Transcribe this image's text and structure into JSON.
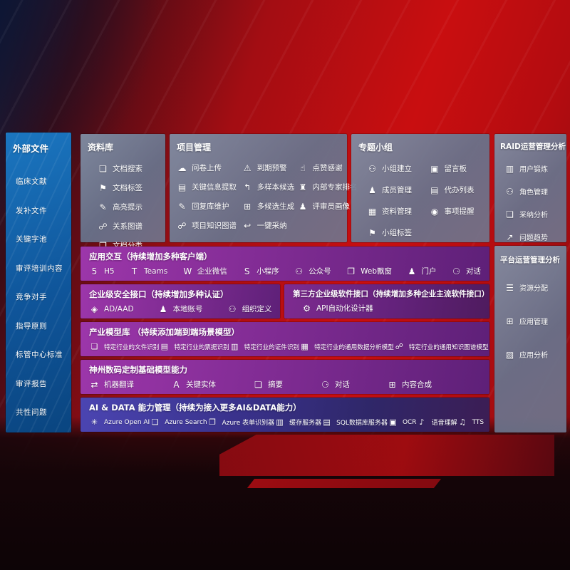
{
  "colors": {
    "background_red": "#c90e10",
    "background_navy": "#16203e",
    "left_panel_blue": "#0f559a",
    "slate_panel": "#6f7d96",
    "purple_row": "#852d97",
    "third_party_row": "#63227b",
    "ai_row_indigo": "#39318a",
    "text": "#ffffff"
  },
  "icons": {
    "doc-search": "❏",
    "doc-tag": "⚑",
    "highlight": "✎",
    "relation-graph": "☍",
    "doc-classify": "❐",
    "cloud-upload": "☁",
    "alarm": "⚠",
    "thumb-up": "☝",
    "info-extract": "▤",
    "multi-sample": "↰",
    "expert-rank": "♜",
    "reply-maintain": "✎",
    "multi-generate": "⊞",
    "reviewer-profile": "♟",
    "project-graph": "☍",
    "one-click-adopt": "↩",
    "group-create": "⚇",
    "message-board": "▣",
    "member-manage": "♟",
    "todo-list": "▤",
    "material-manage": "▦",
    "event-remind": "◉",
    "group-tag": "⚑",
    "user-card": "▥",
    "role-manage": "⚇",
    "adopt-analysis": "❏",
    "trend-chart": "↗",
    "resource-alloc": "☰",
    "app-manage": "⊞",
    "app-analysis": "▨",
    "h5": "5",
    "teams": "T",
    "wechat-work": "W",
    "miniprogram": "S",
    "official-account": "⚇",
    "web-popup": "❐",
    "portal": "♟",
    "dialog": "⚆",
    "ad-aad": "◈",
    "local-account": "♟",
    "org-define": "⚇",
    "api-designer": "⚙",
    "file-recog": "❏",
    "invoice-recog": "▤",
    "id-recog": "▥",
    "data-model": "▦",
    "kg-model": "☍",
    "translate": "⇄",
    "key-entity": "A",
    "summary": "❏",
    "dialogue": "⚆",
    "content-synth": "⊞",
    "openai": "✳",
    "azure-search": "❏",
    "form-recognizer": "❐",
    "cache-server": "▥",
    "sql-server": "▤",
    "ocr": "▣",
    "speech": "♪",
    "tts": "♫"
  },
  "left_column": {
    "title": "外部文件",
    "items": [
      "临床文献",
      "发补文件",
      "关键字池",
      "审评培训内容",
      "竞争对手",
      "指导原则",
      "标管中心标准",
      "审评报告",
      "共性问题"
    ]
  },
  "panels": {
    "repository": {
      "title": "资料库",
      "items": [
        {
          "icon": "doc-search",
          "label": "文档搜索"
        },
        {
          "icon": "doc-tag",
          "label": "文档标签"
        },
        {
          "icon": "highlight",
          "label": "高亮提示"
        },
        {
          "icon": "relation-graph",
          "label": "关系图谱"
        },
        {
          "icon": "doc-classify",
          "label": "文档分类"
        }
      ]
    },
    "project": {
      "title": "项目管理",
      "items": [
        {
          "icon": "cloud-upload",
          "label": "问卷上传"
        },
        {
          "icon": "alarm",
          "label": "到期预警"
        },
        {
          "icon": "thumb-up",
          "label": "点赞感谢"
        },
        {
          "icon": "info-extract",
          "label": "关键信息提取"
        },
        {
          "icon": "multi-sample",
          "label": "多样本候选"
        },
        {
          "icon": "expert-rank",
          "label": "内部专家排名"
        },
        {
          "icon": "reply-maintain",
          "label": "回复库维护"
        },
        {
          "icon": "multi-generate",
          "label": "多候选生成"
        },
        {
          "icon": "reviewer-profile",
          "label": "评审员画像"
        },
        {
          "icon": "project-graph",
          "label": "项目知识图谱"
        },
        {
          "icon": "one-click-adopt",
          "label": "一键采纳"
        }
      ]
    },
    "groups": {
      "title": "专题小组",
      "items": [
        {
          "icon": "group-create",
          "label": "小组建立"
        },
        {
          "icon": "message-board",
          "label": "留言板"
        },
        {
          "icon": "member-manage",
          "label": "成员管理"
        },
        {
          "icon": "todo-list",
          "label": "代办列表"
        },
        {
          "icon": "material-manage",
          "label": "资料管理"
        },
        {
          "icon": "event-remind",
          "label": "事项提醒"
        },
        {
          "icon": "group-tag",
          "label": "小组标签"
        }
      ]
    },
    "raid": {
      "title": "RAID运营管理分析",
      "items": [
        {
          "icon": "user-card",
          "label": "用户锻炼"
        },
        {
          "icon": "role-manage",
          "label": "角色管理"
        },
        {
          "icon": "adopt-analysis",
          "label": "采纳分析"
        },
        {
          "icon": "trend-chart",
          "label": "问题趋势"
        }
      ]
    },
    "platform": {
      "title": "平台运营管理分析",
      "items": [
        {
          "icon": "resource-alloc",
          "label": "资源分配"
        },
        {
          "icon": "app-manage",
          "label": "应用管理"
        },
        {
          "icon": "app-analysis",
          "label": "应用分析"
        }
      ]
    }
  },
  "rows": {
    "interaction": {
      "title": "应用交互（持续增加多种客户端）",
      "items": [
        {
          "icon": "h5",
          "label": "H5"
        },
        {
          "icon": "teams",
          "label": "Teams"
        },
        {
          "icon": "wechat-work",
          "label": "企业微信"
        },
        {
          "icon": "miniprogram",
          "label": "小程序"
        },
        {
          "icon": "official-account",
          "label": "公众号"
        },
        {
          "icon": "web-popup",
          "label": "Web飘窗"
        },
        {
          "icon": "portal",
          "label": "门户"
        },
        {
          "icon": "dialog",
          "label": "对话"
        }
      ]
    },
    "security": {
      "title": "企业级安全接口（持续增加多种认证）",
      "items": [
        {
          "icon": "ad-aad",
          "label": "AD/AAD"
        },
        {
          "icon": "local-account",
          "label": "本地账号"
        },
        {
          "icon": "org-define",
          "label": "组织定义"
        }
      ]
    },
    "third_party": {
      "title": "第三方企业级软件接口（持续增加多种企业主流软件接口）",
      "items": [
        {
          "icon": "api-designer",
          "label": "API自动化设计器"
        }
      ]
    },
    "industry": {
      "title": "产业模型库 （持续添加端到端场景模型）",
      "items": [
        {
          "icon": "file-recog",
          "label": "特定行业的文件识别"
        },
        {
          "icon": "invoice-recog",
          "label": "特定行业的票据识别"
        },
        {
          "icon": "id-recog",
          "label": "特定行业的证件识别"
        },
        {
          "icon": "data-model",
          "label": "特定行业的通用数据分析模型"
        },
        {
          "icon": "kg-model",
          "label": "特定行业的通用知识图谱模型"
        }
      ]
    },
    "base_model": {
      "title": "神州数码定制基础模型能力",
      "items": [
        {
          "icon": "translate",
          "label": "机器翻译"
        },
        {
          "icon": "key-entity",
          "label": "关键实体"
        },
        {
          "icon": "summary",
          "label": "摘要"
        },
        {
          "icon": "dialogue",
          "label": "对话"
        },
        {
          "icon": "content-synth",
          "label": "内容合成"
        }
      ]
    },
    "ai_data": {
      "title": "AI & DATA 能力管理（持续为接入更多AI&DATA能力）",
      "items": [
        {
          "icon": "openai",
          "label": "Azure Open AI"
        },
        {
          "icon": "azure-search",
          "label": "Azure Search"
        },
        {
          "icon": "form-recognizer",
          "label": "Azure 表单识别器"
        },
        {
          "icon": "cache-server",
          "label": "缓存服务器"
        },
        {
          "icon": "sql-server",
          "label": "SQL数据库服务器"
        },
        {
          "icon": "ocr",
          "label": "OCR"
        },
        {
          "icon": "speech",
          "label": "语音理解"
        },
        {
          "icon": "tts",
          "label": "TTS"
        }
      ]
    }
  }
}
